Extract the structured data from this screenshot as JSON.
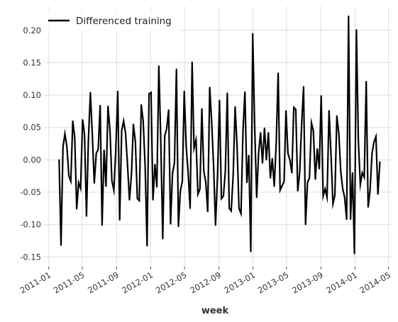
{
  "chart_data": {
    "type": "line",
    "xlabel": "week",
    "ylabel": "",
    "x_ticks": [
      {
        "date": "2011-01-01",
        "label": "2011-01"
      },
      {
        "date": "2011-05-01",
        "label": "2011-05"
      },
      {
        "date": "2011-09-01",
        "label": "2011-09"
      },
      {
        "date": "2012-01-01",
        "label": "2012-01"
      },
      {
        "date": "2012-05-01",
        "label": "2012-05"
      },
      {
        "date": "2012-09-01",
        "label": "2012-09"
      },
      {
        "date": "2013-01-01",
        "label": "2013-01"
      },
      {
        "date": "2013-05-01",
        "label": "2013-05"
      },
      {
        "date": "2013-09-01",
        "label": "2013-09"
      },
      {
        "date": "2014-01-01",
        "label": "2014-01"
      },
      {
        "date": "2014-05-01",
        "label": "2014-05"
      }
    ],
    "y_ticks": [
      -0.15,
      -0.1,
      -0.05,
      0.0,
      0.05,
      0.1,
      0.15,
      0.2
    ],
    "xlim": [
      "2010-12-15",
      "2014-05-12"
    ],
    "ylim": [
      -0.165,
      0.237
    ],
    "grid": true,
    "legend_position": "top-left",
    "series": [
      {
        "name": "Differenced training",
        "color": "#000000",
        "points": [
          [
            "2011-02-07",
            0.0
          ],
          [
            "2011-02-14",
            -0.132
          ],
          [
            "2011-02-21",
            0.02
          ],
          [
            "2011-02-28",
            0.04
          ],
          [
            "2011-03-07",
            0.02
          ],
          [
            "2011-03-14",
            -0.025
          ],
          [
            "2011-03-21",
            -0.033
          ],
          [
            "2011-03-28",
            0.06
          ],
          [
            "2011-04-04",
            0.035
          ],
          [
            "2011-04-11",
            -0.076
          ],
          [
            "2011-04-18",
            -0.035
          ],
          [
            "2011-04-25",
            -0.044
          ],
          [
            "2011-05-02",
            0.062
          ],
          [
            "2011-05-09",
            0.04
          ],
          [
            "2011-05-16",
            -0.087
          ],
          [
            "2011-05-23",
            0.03
          ],
          [
            "2011-05-30",
            0.104
          ],
          [
            "2011-06-06",
            0.04
          ],
          [
            "2011-06-13",
            -0.036
          ],
          [
            "2011-06-20",
            0.01
          ],
          [
            "2011-06-27",
            0.016
          ],
          [
            "2011-07-04",
            0.084
          ],
          [
            "2011-07-11",
            -0.101
          ],
          [
            "2011-07-18",
            0.015
          ],
          [
            "2011-07-25",
            -0.041
          ],
          [
            "2011-08-01",
            0.083
          ],
          [
            "2011-08-08",
            0.046
          ],
          [
            "2011-08-15",
            -0.032
          ],
          [
            "2011-08-22",
            -0.047
          ],
          [
            "2011-08-29",
            0.015
          ],
          [
            "2011-09-05",
            0.106
          ],
          [
            "2011-09-12",
            -0.093
          ],
          [
            "2011-09-19",
            0.045
          ],
          [
            "2011-09-26",
            0.06
          ],
          [
            "2011-10-03",
            0.041
          ],
          [
            "2011-10-10",
            -0.009
          ],
          [
            "2011-10-17",
            -0.062
          ],
          [
            "2011-10-24",
            -0.022
          ],
          [
            "2011-10-31",
            0.055
          ],
          [
            "2011-11-07",
            0.028
          ],
          [
            "2011-11-14",
            -0.06
          ],
          [
            "2011-11-21",
            -0.063
          ],
          [
            "2011-11-28",
            0.085
          ],
          [
            "2011-12-05",
            0.06
          ],
          [
            "2011-12-12",
            -0.01
          ],
          [
            "2011-12-19",
            -0.133
          ],
          [
            "2011-12-26",
            0.102
          ],
          [
            "2012-01-02",
            0.104
          ],
          [
            "2012-01-09",
            -0.062
          ],
          [
            "2012-01-16",
            -0.007
          ],
          [
            "2012-01-23",
            -0.042
          ],
          [
            "2012-01-30",
            0.145
          ],
          [
            "2012-02-06",
            0.032
          ],
          [
            "2012-02-13",
            -0.122
          ],
          [
            "2012-02-20",
            0.037
          ],
          [
            "2012-02-27",
            0.048
          ],
          [
            "2012-03-05",
            0.077
          ],
          [
            "2012-03-12",
            -0.099
          ],
          [
            "2012-03-19",
            -0.02
          ],
          [
            "2012-03-26",
            -0.005
          ],
          [
            "2012-04-02",
            0.14
          ],
          [
            "2012-04-09",
            -0.103
          ],
          [
            "2012-04-16",
            -0.048
          ],
          [
            "2012-04-23",
            -0.033
          ],
          [
            "2012-04-30",
            0.106
          ],
          [
            "2012-05-07",
            0.02
          ],
          [
            "2012-05-14",
            -0.02
          ],
          [
            "2012-05-21",
            -0.075
          ],
          [
            "2012-05-28",
            0.151
          ],
          [
            "2012-06-04",
            0.018
          ],
          [
            "2012-06-11",
            0.031
          ],
          [
            "2012-06-18",
            -0.053
          ],
          [
            "2012-06-25",
            -0.045
          ],
          [
            "2012-07-02",
            0.079
          ],
          [
            "2012-07-09",
            -0.018
          ],
          [
            "2012-07-16",
            -0.035
          ],
          [
            "2012-07-23",
            -0.08
          ],
          [
            "2012-07-30",
            0.112
          ],
          [
            "2012-08-06",
            0.06
          ],
          [
            "2012-08-13",
            -0.01
          ],
          [
            "2012-08-20",
            -0.101
          ],
          [
            "2012-08-27",
            -0.025
          ],
          [
            "2012-09-03",
            0.092
          ],
          [
            "2012-09-10",
            -0.06
          ],
          [
            "2012-09-17",
            -0.056
          ],
          [
            "2012-09-24",
            -0.018
          ],
          [
            "2012-10-01",
            0.103
          ],
          [
            "2012-10-08",
            -0.075
          ],
          [
            "2012-10-15",
            -0.079
          ],
          [
            "2012-10-22",
            -0.023
          ],
          [
            "2012-10-29",
            0.082
          ],
          [
            "2012-11-05",
            0.02
          ],
          [
            "2012-11-12",
            -0.075
          ],
          [
            "2012-11-19",
            -0.083
          ],
          [
            "2012-11-26",
            0.045
          ],
          [
            "2012-12-03",
            0.105
          ],
          [
            "2012-12-10",
            -0.035
          ],
          [
            "2012-12-17",
            0.007
          ],
          [
            "2012-12-24",
            -0.142
          ],
          [
            "2012-12-31",
            0.195
          ],
          [
            "2013-01-07",
            0.05
          ],
          [
            "2013-01-14",
            -0.058
          ],
          [
            "2013-01-21",
            0.01
          ],
          [
            "2013-01-28",
            0.042
          ],
          [
            "2013-02-04",
            -0.005
          ],
          [
            "2013-02-11",
            0.049
          ],
          [
            "2013-02-18",
            0.0
          ],
          [
            "2013-02-25",
            0.042
          ],
          [
            "2013-03-04",
            -0.028
          ],
          [
            "2013-03-11",
            0.002
          ],
          [
            "2013-03-18",
            -0.041
          ],
          [
            "2013-03-25",
            0.025
          ],
          [
            "2013-04-01",
            0.134
          ],
          [
            "2013-04-08",
            -0.047
          ],
          [
            "2013-04-15",
            -0.04
          ],
          [
            "2013-04-22",
            -0.034
          ],
          [
            "2013-04-29",
            0.076
          ],
          [
            "2013-05-06",
            0.01
          ],
          [
            "2013-05-13",
            0.0
          ],
          [
            "2013-05-20",
            -0.02
          ],
          [
            "2013-05-27",
            0.081
          ],
          [
            "2013-06-03",
            0.078
          ],
          [
            "2013-06-10",
            -0.048
          ],
          [
            "2013-06-17",
            -0.02
          ],
          [
            "2013-06-24",
            0.055
          ],
          [
            "2013-07-01",
            0.113
          ],
          [
            "2013-07-08",
            -0.1
          ],
          [
            "2013-07-15",
            -0.035
          ],
          [
            "2013-07-22",
            -0.028
          ],
          [
            "2013-07-29",
            0.057
          ],
          [
            "2013-08-05",
            0.045
          ],
          [
            "2013-08-12",
            -0.03
          ],
          [
            "2013-08-19",
            0.017
          ],
          [
            "2013-08-26",
            -0.014
          ],
          [
            "2013-09-02",
            0.099
          ],
          [
            "2013-09-09",
            -0.056
          ],
          [
            "2013-09-16",
            -0.045
          ],
          [
            "2013-09-23",
            -0.058
          ],
          [
            "2013-09-30",
            0.076
          ],
          [
            "2013-10-07",
            0.01
          ],
          [
            "2013-10-14",
            -0.068
          ],
          [
            "2013-10-21",
            -0.055
          ],
          [
            "2013-10-28",
            0.068
          ],
          [
            "2013-11-04",
            0.04
          ],
          [
            "2013-11-11",
            -0.018
          ],
          [
            "2013-11-18",
            -0.045
          ],
          [
            "2013-11-25",
            -0.058
          ],
          [
            "2013-12-02",
            -0.092
          ],
          [
            "2013-12-09",
            0.222
          ],
          [
            "2013-12-16",
            -0.092
          ],
          [
            "2013-12-23",
            -0.02
          ],
          [
            "2013-12-30",
            -0.145
          ],
          [
            "2014-01-06",
            0.201
          ],
          [
            "2014-01-13",
            0.03
          ],
          [
            "2014-01-20",
            -0.038
          ],
          [
            "2014-01-27",
            -0.02
          ],
          [
            "2014-02-03",
            -0.027
          ],
          [
            "2014-02-10",
            0.121
          ],
          [
            "2014-02-17",
            -0.073
          ],
          [
            "2014-02-24",
            -0.046
          ],
          [
            "2014-03-03",
            0.01
          ],
          [
            "2014-03-10",
            0.028
          ],
          [
            "2014-03-17",
            0.036
          ],
          [
            "2014-03-24",
            -0.053
          ],
          [
            "2014-03-31",
            -0.003
          ]
        ]
      }
    ]
  }
}
